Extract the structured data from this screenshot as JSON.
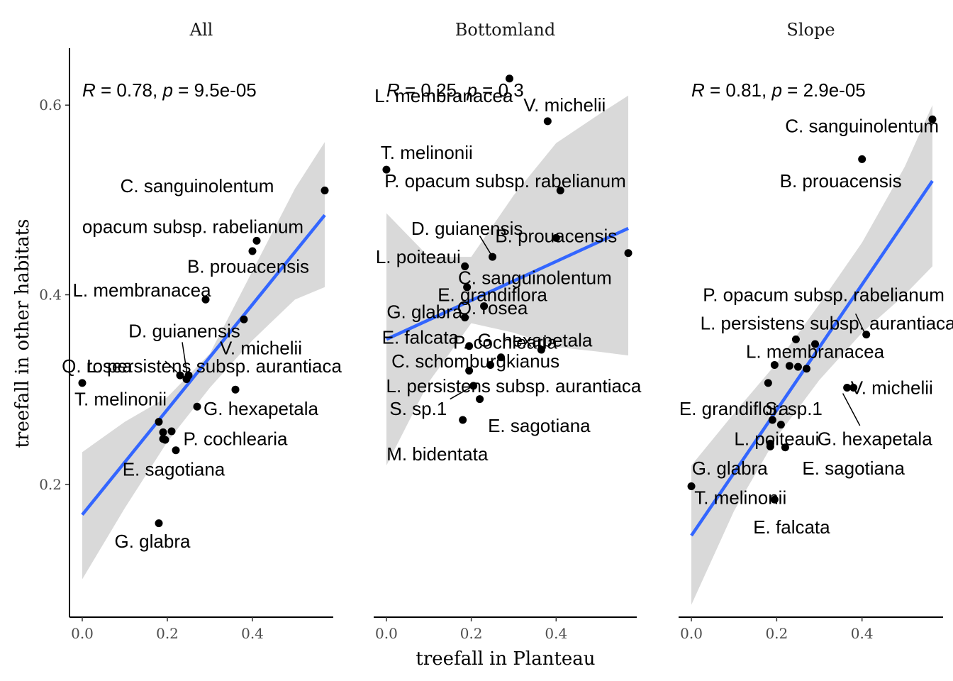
{
  "chart_data": {
    "type": "scatter",
    "xlabel": "treefall in Planteau",
    "ylabel": "treefall in other habitats",
    "xlim": [
      -0.03,
      0.59
    ],
    "ylim": [
      0.06,
      0.66
    ],
    "x_ticks": [
      {
        "value": 0.0,
        "label": "0.0"
      },
      {
        "value": 0.2,
        "label": "0.2"
      },
      {
        "value": 0.4,
        "label": "0.4"
      }
    ],
    "y_ticks": [
      {
        "value": 0.2,
        "label": "0.2"
      },
      {
        "value": 0.4,
        "label": "0.4"
      },
      {
        "value": 0.6,
        "label": "0.6"
      }
    ],
    "panels": [
      {
        "title": "All",
        "stat": {
          "R": "0.78",
          "p": "9.5e-05"
        },
        "fit": {
          "x": [
            0.0,
            0.57
          ],
          "y": [
            0.168,
            0.484
          ]
        },
        "ci": {
          "x": [
            0.0,
            0.1,
            0.2,
            0.3,
            0.4,
            0.5,
            0.57
          ],
          "lower": [
            0.1,
            0.175,
            0.245,
            0.302,
            0.352,
            0.395,
            0.408
          ],
          "upper": [
            0.234,
            0.266,
            0.292,
            0.338,
            0.425,
            0.512,
            0.561
          ]
        },
        "points": [
          {
            "x": 0.57,
            "y": 0.51
          },
          {
            "x": 0.41,
            "y": 0.457
          },
          {
            "x": 0.4,
            "y": 0.446
          },
          {
            "x": 0.29,
            "y": 0.395
          },
          {
            "x": 0.38,
            "y": 0.374
          },
          {
            "x": 0.23,
            "y": 0.315
          },
          {
            "x": 0.25,
            "y": 0.315
          },
          {
            "x": 0.245,
            "y": 0.311
          },
          {
            "x": 0.0,
            "y": 0.307
          },
          {
            "x": 0.36,
            "y": 0.3
          },
          {
            "x": 0.27,
            "y": 0.282
          },
          {
            "x": 0.18,
            "y": 0.266
          },
          {
            "x": 0.21,
            "y": 0.256
          },
          {
            "x": 0.19,
            "y": 0.255
          },
          {
            "x": 0.19,
            "y": 0.248
          },
          {
            "x": 0.195,
            "y": 0.247
          },
          {
            "x": 0.22,
            "y": 0.236
          },
          {
            "x": 0.18,
            "y": 0.159
          }
        ],
        "labels": [
          {
            "text": "C. sanguinolentum",
            "x": 0.27,
            "y": 0.515
          },
          {
            "text": "opacum subsp. rabelianum",
            "x": 0.26,
            "y": 0.472
          },
          {
            "text": "B. prouacensis",
            "x": 0.39,
            "y": 0.43
          },
          {
            "text": "L. membranacea",
            "x": 0.14,
            "y": 0.405
          },
          {
            "text": "D. guianensis",
            "x": 0.24,
            "y": 0.362
          },
          {
            "text": "V. michelii",
            "x": 0.42,
            "y": 0.344
          },
          {
            "text": "L. persistens subsp. aurantiaca",
            "x": 0.31,
            "y": 0.325
          },
          {
            "text": "Q. rosea",
            "x": 0.035,
            "y": 0.325
          },
          {
            "text": "T. melinonii",
            "x": 0.09,
            "y": 0.29
          },
          {
            "text": "G. hexapetala",
            "x": 0.42,
            "y": 0.28
          },
          {
            "text": "P. cochlearia",
            "x": 0.36,
            "y": 0.248
          },
          {
            "text": "E. sagotiana",
            "x": 0.215,
            "y": 0.216
          },
          {
            "text": "G. glabra",
            "x": 0.165,
            "y": 0.14
          }
        ],
        "segments": [
          {
            "x1": 0.195,
            "y1": 0.33,
            "x2": 0.233,
            "y2": 0.314
          },
          {
            "x1": 0.235,
            "y1": 0.35,
            "x2": 0.248,
            "y2": 0.312
          }
        ]
      },
      {
        "title": "Bottomland",
        "stat": {
          "R": "0.25",
          "p": "0.3"
        },
        "fit": {
          "x": [
            0.0,
            0.57
          ],
          "y": [
            0.353,
            0.47
          ]
        },
        "ci": {
          "x": [
            0.0,
            0.1,
            0.2,
            0.3,
            0.4,
            0.5,
            0.57
          ],
          "lower": [
            0.22,
            0.308,
            0.37,
            0.36,
            0.345,
            0.34,
            0.336
          ],
          "upper": [
            0.486,
            0.44,
            0.44,
            0.505,
            0.56,
            0.59,
            0.61
          ]
        },
        "points": [
          {
            "x": 0.29,
            "y": 0.628
          },
          {
            "x": 0.38,
            "y": 0.583
          },
          {
            "x": 0.0,
            "y": 0.532
          },
          {
            "x": 0.41,
            "y": 0.51
          },
          {
            "x": 0.4,
            "y": 0.46
          },
          {
            "x": 0.57,
            "y": 0.444
          },
          {
            "x": 0.25,
            "y": 0.44
          },
          {
            "x": 0.185,
            "y": 0.43
          },
          {
            "x": 0.19,
            "y": 0.408
          },
          {
            "x": 0.23,
            "y": 0.388
          },
          {
            "x": 0.185,
            "y": 0.376
          },
          {
            "x": 0.195,
            "y": 0.346
          },
          {
            "x": 0.365,
            "y": 0.342
          },
          {
            "x": 0.27,
            "y": 0.334
          },
          {
            "x": 0.245,
            "y": 0.326
          },
          {
            "x": 0.195,
            "y": 0.32
          },
          {
            "x": 0.205,
            "y": 0.304
          },
          {
            "x": 0.22,
            "y": 0.29
          },
          {
            "x": 0.18,
            "y": 0.268
          }
        ],
        "labels": [
          {
            "text": "L. membranacea",
            "x": 0.135,
            "y": 0.61
          },
          {
            "text": "V. michelii",
            "x": 0.42,
            "y": 0.6
          },
          {
            "text": "T. melinonii",
            "x": 0.095,
            "y": 0.55
          },
          {
            "text": "P. opacum subsp. rabelianum",
            "x": 0.28,
            "y": 0.52
          },
          {
            "text": "D. guianensis",
            "x": 0.19,
            "y": 0.47
          },
          {
            "text": "B. prouacensis",
            "x": 0.4,
            "y": 0.462
          },
          {
            "text": "L. poiteaui",
            "x": 0.075,
            "y": 0.44
          },
          {
            "text": "C. sanguinolentum",
            "x": 0.35,
            "y": 0.418
          },
          {
            "text": "E. grandiflora",
            "x": 0.25,
            "y": 0.4
          },
          {
            "text": "G. glabra",
            "x": 0.09,
            "y": 0.382
          },
          {
            "text": "Q. rosea",
            "x": 0.25,
            "y": 0.386
          },
          {
            "text": "E. falcata",
            "x": 0.08,
            "y": 0.355
          },
          {
            "text": "P. cochlearia",
            "x": 0.28,
            "y": 0.35
          },
          {
            "text": "G. hexapetala",
            "x": 0.35,
            "y": 0.352
          },
          {
            "text": "C. schomburgkianus",
            "x": 0.21,
            "y": 0.33
          },
          {
            "text": "L. persistens subsp. aurantiaca",
            "x": 0.3,
            "y": 0.304
          },
          {
            "text": "S. sp.1",
            "x": 0.075,
            "y": 0.28
          },
          {
            "text": "E. sagotiana",
            "x": 0.36,
            "y": 0.262
          },
          {
            "text": "M. bidentata",
            "x": 0.12,
            "y": 0.232
          }
        ],
        "segments": [
          {
            "x1": 0.22,
            "y1": 0.462,
            "x2": 0.25,
            "y2": 0.44
          },
          {
            "x1": 0.15,
            "y1": 0.29,
            "x2": 0.205,
            "y2": 0.304
          }
        ],
        "stat_overlap_note": ""
      },
      {
        "title": "Slope",
        "stat": {
          "R": "0.81",
          "p": "2.9e-05"
        },
        "fit": {
          "x": [
            0.0,
            0.565
          ],
          "y": [
            0.146,
            0.52
          ]
        },
        "ci": {
          "x": [
            0.0,
            0.1,
            0.2,
            0.3,
            0.4,
            0.5,
            0.565
          ],
          "lower": [
            0.073,
            0.172,
            0.25,
            0.31,
            0.36,
            0.4,
            0.43
          ],
          "upper": [
            0.22,
            0.275,
            0.328,
            0.39,
            0.455,
            0.535,
            0.6
          ]
        },
        "points": [
          {
            "x": 0.565,
            "y": 0.585
          },
          {
            "x": 0.4,
            "y": 0.543
          },
          {
            "x": 0.41,
            "y": 0.358
          },
          {
            "x": 0.245,
            "y": 0.353
          },
          {
            "x": 0.29,
            "y": 0.348
          },
          {
            "x": 0.195,
            "y": 0.326
          },
          {
            "x": 0.23,
            "y": 0.325
          },
          {
            "x": 0.25,
            "y": 0.324
          },
          {
            "x": 0.27,
            "y": 0.322
          },
          {
            "x": 0.18,
            "y": 0.307
          },
          {
            "x": 0.365,
            "y": 0.302
          },
          {
            "x": 0.38,
            "y": 0.302
          },
          {
            "x": 0.19,
            "y": 0.268
          },
          {
            "x": 0.21,
            "y": 0.263
          },
          {
            "x": 0.185,
            "y": 0.243
          },
          {
            "x": 0.185,
            "y": 0.24
          },
          {
            "x": 0.22,
            "y": 0.239
          },
          {
            "x": 0.0,
            "y": 0.198
          },
          {
            "x": 0.195,
            "y": 0.184
          }
        ],
        "labels": [
          {
            "text": "C. sanguinolentum",
            "x": 0.4,
            "y": 0.578
          },
          {
            "text": "B. prouacensis",
            "x": 0.35,
            "y": 0.52
          },
          {
            "text": "P. opacum subsp. rabelianum",
            "x": 0.31,
            "y": 0.4
          },
          {
            "text": "L. persistens subsp. aurantiaca",
            "x": 0.32,
            "y": 0.37
          },
          {
            "text": "L. membranacea",
            "x": 0.29,
            "y": 0.34
          },
          {
            "text": "V. michelii",
            "x": 0.47,
            "y": 0.302
          },
          {
            "text": "E. grandiflora",
            "x": 0.1,
            "y": 0.28
          },
          {
            "text": "S. sp.1",
            "x": 0.24,
            "y": 0.28
          },
          {
            "text": "L. poiteaui",
            "x": 0.2,
            "y": 0.248
          },
          {
            "text": "G. hexapetala",
            "x": 0.43,
            "y": 0.248
          },
          {
            "text": "G. glabra",
            "x": 0.09,
            "y": 0.217
          },
          {
            "text": "E. sagotiana",
            "x": 0.38,
            "y": 0.217
          },
          {
            "text": "T. melinonii",
            "x": 0.115,
            "y": 0.186
          },
          {
            "text": "E. falcata",
            "x": 0.235,
            "y": 0.155
          }
        ],
        "segments": [
          {
            "x1": 0.385,
            "y1": 0.38,
            "x2": 0.408,
            "y2": 0.358
          },
          {
            "x1": 0.355,
            "y1": 0.296,
            "x2": 0.395,
            "y2": 0.262
          }
        ]
      }
    ]
  }
}
